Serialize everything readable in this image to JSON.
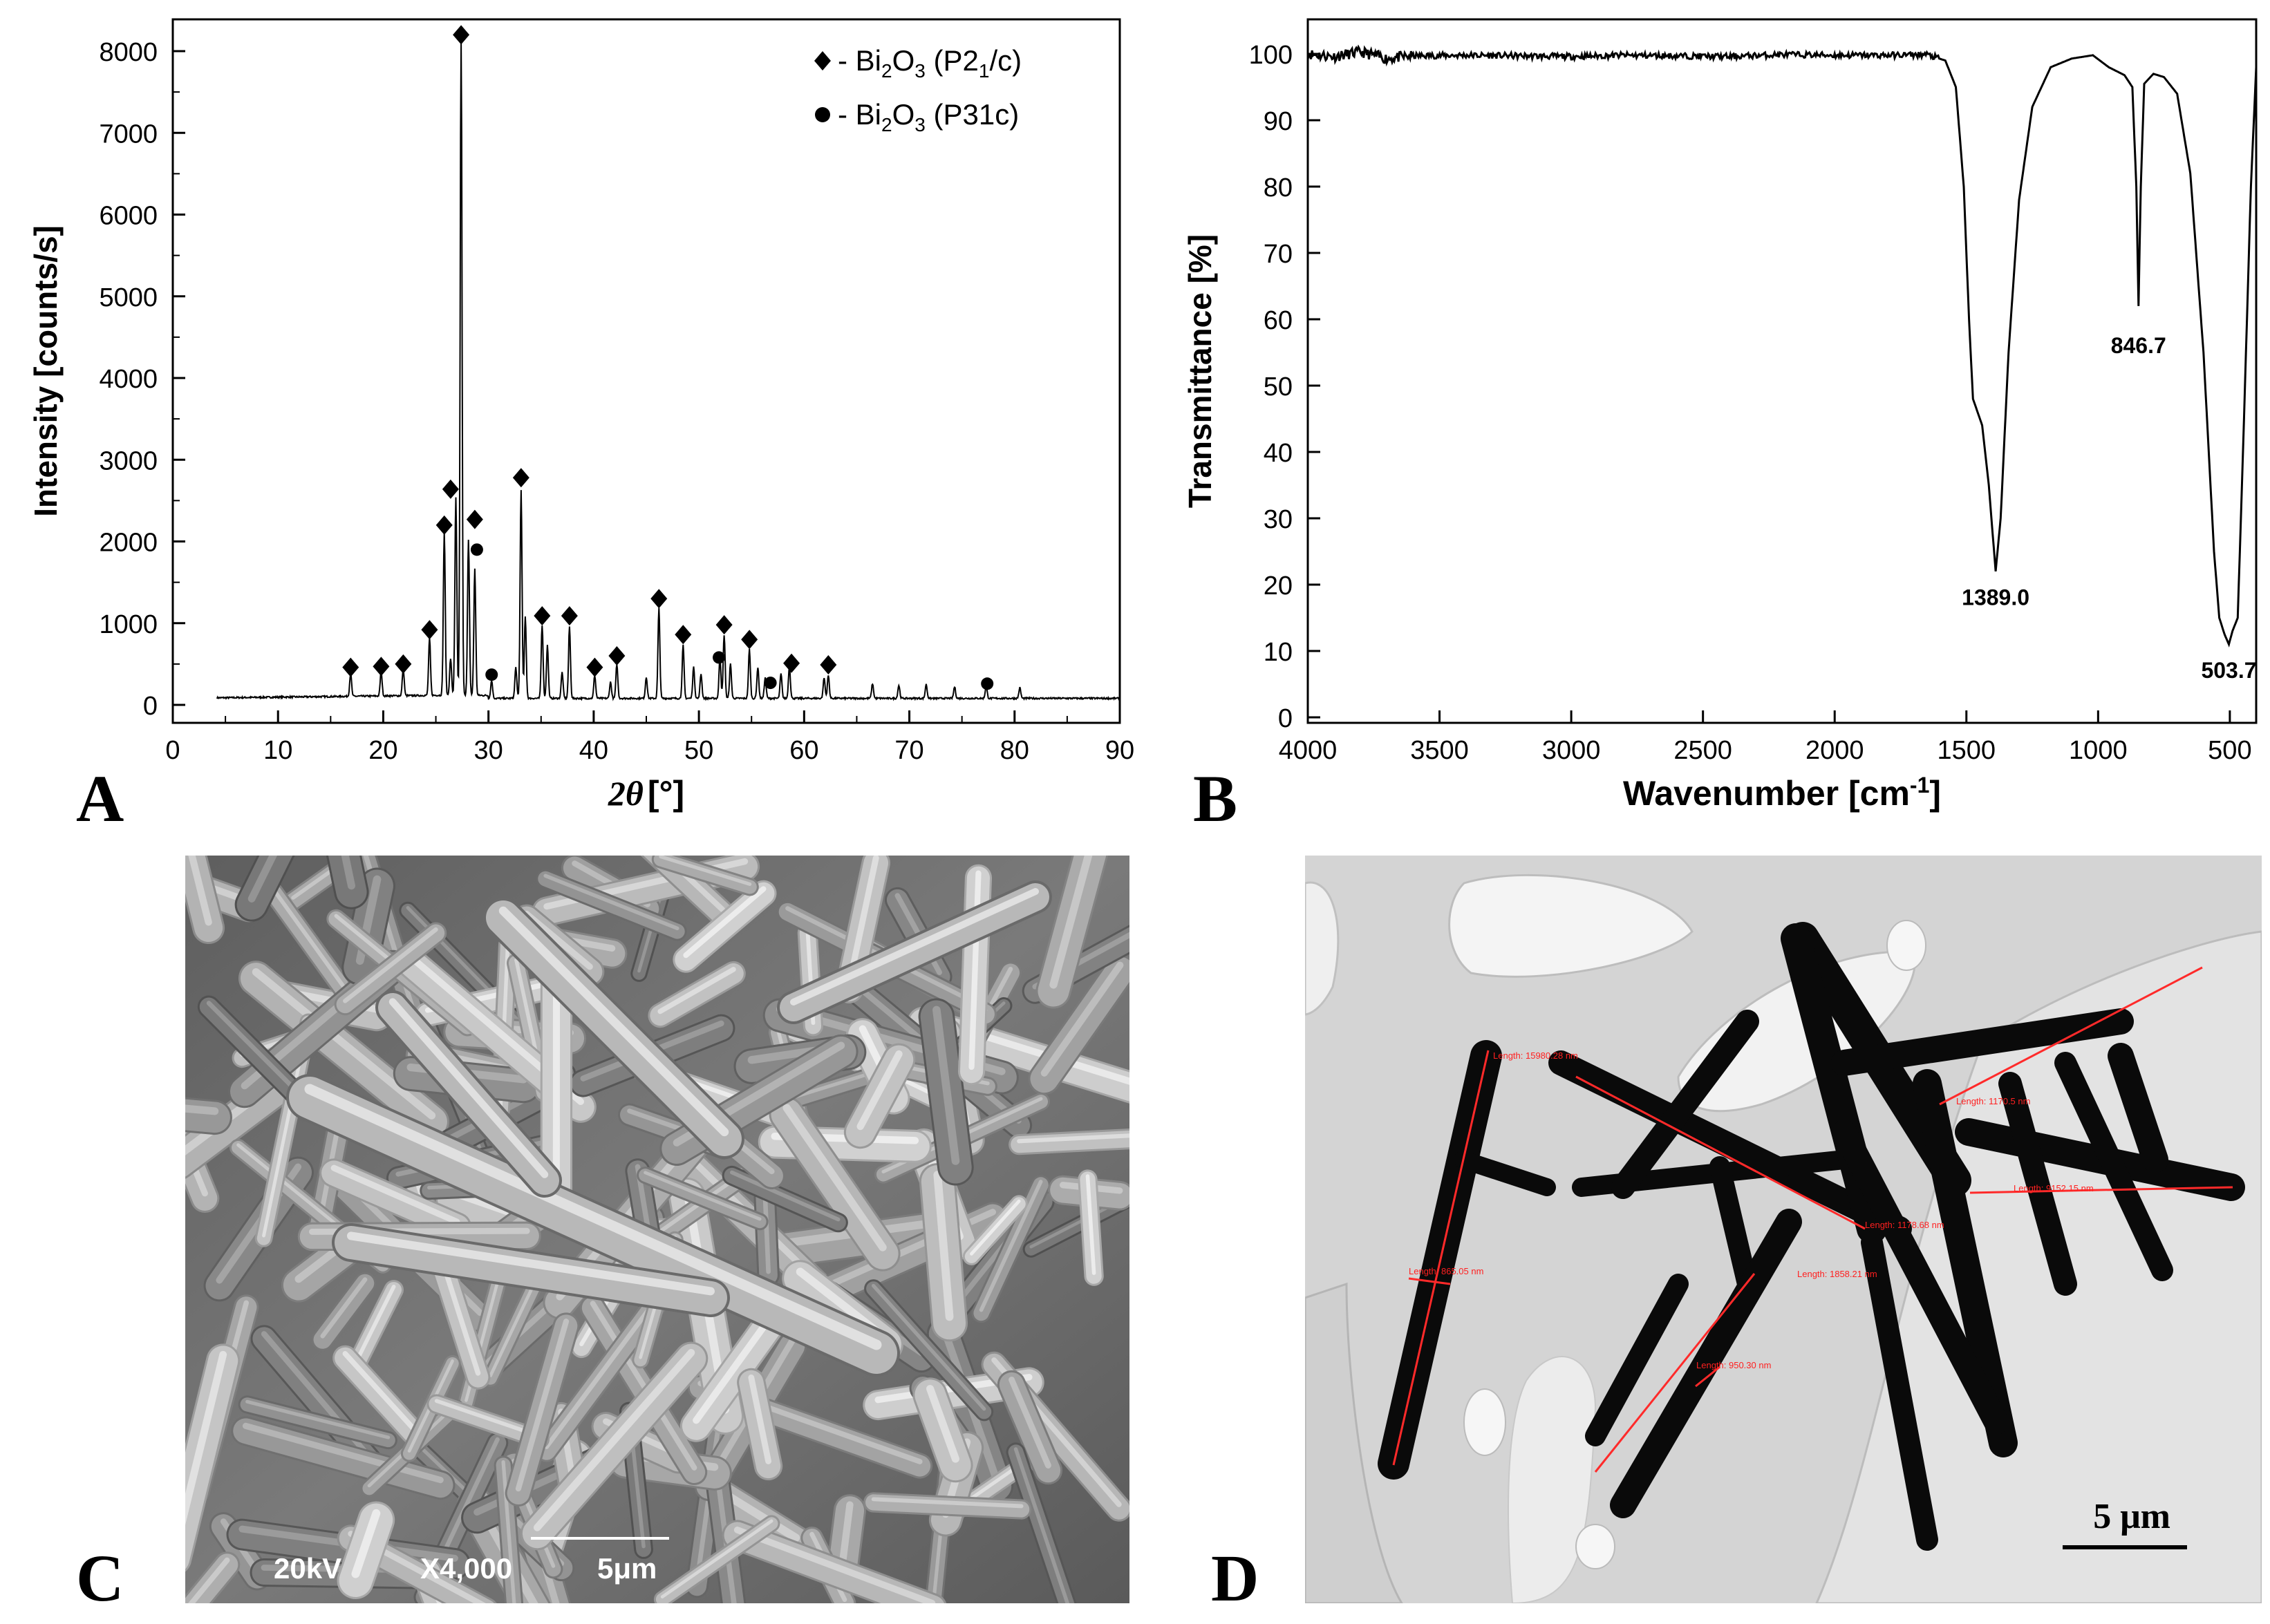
{
  "panels": {
    "a": {
      "label": "A"
    },
    "b": {
      "label": "B"
    },
    "c": {
      "label": "C"
    },
    "d": {
      "label": "D"
    }
  },
  "chart_data": [
    {
      "type": "line",
      "panel": "A",
      "xlabel_symbol": "2θ",
      "xlabel_unit": "[°]",
      "ylabel": "Intensity [counts/s]",
      "xlim": [
        0,
        90
      ],
      "ylim": [
        0,
        8300
      ],
      "xticks": [
        0,
        10,
        20,
        30,
        40,
        50,
        60,
        70,
        80,
        90
      ],
      "yticks": [
        0,
        1000,
        2000,
        3000,
        4000,
        5000,
        6000,
        7000,
        8000
      ],
      "legend_position": "top-right",
      "legend": [
        {
          "marker": "diamond",
          "text": "- Bi₂O₃ (P2₁/c)"
        },
        {
          "marker": "circle",
          "text": "- Bi₂O₃ (P31c)"
        }
      ],
      "peaks": [
        {
          "x": 16.9,
          "y": 280
        },
        {
          "x": 19.8,
          "y": 300
        },
        {
          "x": 21.9,
          "y": 330
        },
        {
          "x": 24.4,
          "y": 700
        },
        {
          "x": 25.8,
          "y": 2000
        },
        {
          "x": 26.4,
          "y": 450
        },
        {
          "x": 26.9,
          "y": 2420
        },
        {
          "x": 27.4,
          "y": 8000
        },
        {
          "x": 28.1,
          "y": 1900
        },
        {
          "x": 28.7,
          "y": 1550
        },
        {
          "x": 30.3,
          "y": 220
        },
        {
          "x": 32.6,
          "y": 380
        },
        {
          "x": 33.1,
          "y": 2550
        },
        {
          "x": 33.5,
          "y": 1000
        },
        {
          "x": 35.1,
          "y": 900
        },
        {
          "x": 35.6,
          "y": 650
        },
        {
          "x": 37.0,
          "y": 320
        },
        {
          "x": 37.7,
          "y": 880
        },
        {
          "x": 40.1,
          "y": 280
        },
        {
          "x": 41.6,
          "y": 200
        },
        {
          "x": 42.2,
          "y": 420
        },
        {
          "x": 45.0,
          "y": 260
        },
        {
          "x": 46.2,
          "y": 1100
        },
        {
          "x": 48.5,
          "y": 650
        },
        {
          "x": 49.5,
          "y": 380
        },
        {
          "x": 50.2,
          "y": 300
        },
        {
          "x": 52.0,
          "y": 500
        },
        {
          "x": 52.4,
          "y": 780
        },
        {
          "x": 53.0,
          "y": 420
        },
        {
          "x": 54.8,
          "y": 600
        },
        {
          "x": 55.6,
          "y": 380
        },
        {
          "x": 56.3,
          "y": 250
        },
        {
          "x": 57.8,
          "y": 300
        },
        {
          "x": 58.6,
          "y": 400
        },
        {
          "x": 61.9,
          "y": 250
        },
        {
          "x": 62.3,
          "y": 280
        },
        {
          "x": 66.5,
          "y": 180
        },
        {
          "x": 69.0,
          "y": 160
        },
        {
          "x": 71.6,
          "y": 170
        },
        {
          "x": 74.3,
          "y": 140
        },
        {
          "x": 77.3,
          "y": 150
        },
        {
          "x": 80.5,
          "y": 130
        }
      ],
      "markers_monoclinic": [
        {
          "x": 16.9,
          "y": 460
        },
        {
          "x": 19.8,
          "y": 470
        },
        {
          "x": 21.9,
          "y": 500
        },
        {
          "x": 24.4,
          "y": 920
        },
        {
          "x": 25.8,
          "y": 2200
        },
        {
          "x": 26.4,
          "y": 2640
        },
        {
          "x": 27.4,
          "y": 8200
        },
        {
          "x": 28.7,
          "y": 2270
        },
        {
          "x": 33.1,
          "y": 2780
        },
        {
          "x": 35.1,
          "y": 1090
        },
        {
          "x": 37.7,
          "y": 1090
        },
        {
          "x": 40.1,
          "y": 460
        },
        {
          "x": 42.2,
          "y": 600
        },
        {
          "x": 46.2,
          "y": 1300
        },
        {
          "x": 48.5,
          "y": 860
        },
        {
          "x": 52.4,
          "y": 980
        },
        {
          "x": 54.8,
          "y": 800
        },
        {
          "x": 58.8,
          "y": 510
        },
        {
          "x": 62.3,
          "y": 490
        }
      ],
      "markers_trigonal": [
        {
          "x": 28.9,
          "y": 1900
        },
        {
          "x": 30.3,
          "y": 370
        },
        {
          "x": 51.9,
          "y": 580
        },
        {
          "x": 56.8,
          "y": 270
        },
        {
          "x": 77.4,
          "y": 260
        }
      ]
    },
    {
      "type": "line",
      "panel": "B",
      "xlabel": "Wavenumber [cm⁻¹]",
      "ylabel": "Transmittance [%]",
      "xlim": [
        4000,
        400
      ],
      "ylim": [
        0,
        105
      ],
      "xticks": [
        4000,
        3500,
        3000,
        2500,
        2000,
        1500,
        1000,
        500
      ],
      "yticks": [
        0,
        10,
        20,
        30,
        40,
        50,
        60,
        70,
        80,
        90,
        100
      ],
      "points": [
        [
          4000,
          100
        ],
        [
          3900,
          99.6
        ],
        [
          3800,
          100.3
        ],
        [
          3700,
          99.3
        ],
        [
          3600,
          99.7
        ],
        [
          3400,
          99.8
        ],
        [
          3200,
          99.7
        ],
        [
          3000,
          99.6
        ],
        [
          2800,
          99.8
        ],
        [
          2600,
          99.7
        ],
        [
          2400,
          99.6
        ],
        [
          2200,
          99.9
        ],
        [
          2000,
          99.8
        ],
        [
          1800,
          99.8
        ],
        [
          1650,
          99.9
        ],
        [
          1580,
          99
        ],
        [
          1540,
          95
        ],
        [
          1510,
          80
        ],
        [
          1490,
          60
        ],
        [
          1475,
          48
        ],
        [
          1440,
          44
        ],
        [
          1415,
          35
        ],
        [
          1389,
          22
        ],
        [
          1370,
          30
        ],
        [
          1340,
          55
        ],
        [
          1300,
          78
        ],
        [
          1250,
          92
        ],
        [
          1180,
          98
        ],
        [
          1100,
          99.3
        ],
        [
          1020,
          99.8
        ],
        [
          960,
          98
        ],
        [
          900,
          96.8
        ],
        [
          870,
          95
        ],
        [
          855,
          80
        ],
        [
          846.7,
          62
        ],
        [
          838,
          80
        ],
        [
          825,
          95.5
        ],
        [
          790,
          97
        ],
        [
          750,
          96.5
        ],
        [
          700,
          94
        ],
        [
          650,
          82
        ],
        [
          600,
          55
        ],
        [
          560,
          25
        ],
        [
          540,
          15
        ],
        [
          520,
          12.5
        ],
        [
          503.7,
          11
        ],
        [
          490,
          13
        ],
        [
          470,
          15
        ],
        [
          450,
          40
        ],
        [
          420,
          80
        ],
        [
          400,
          98
        ]
      ],
      "annotations": [
        {
          "text": "1389.0",
          "x": 1389,
          "y": 19
        },
        {
          "text": "846.7",
          "x": 846.7,
          "y": 57
        },
        {
          "text": "503.7",
          "x": 503.7,
          "y": 8
        }
      ]
    }
  ],
  "sem": {
    "voltage": "20kV",
    "magnification": "X4,000",
    "scale": "5μm"
  },
  "tem": {
    "scale": "5 μm",
    "measurements": [
      "Length: 15980.28 nm",
      "Length: 1170.5 nm",
      "Length: 1178.68 nm",
      "Length: 9152.15 nm",
      "Length: 865.05 nm",
      "Length: 1858.21 nm",
      "Length: 950.30 nm"
    ]
  }
}
